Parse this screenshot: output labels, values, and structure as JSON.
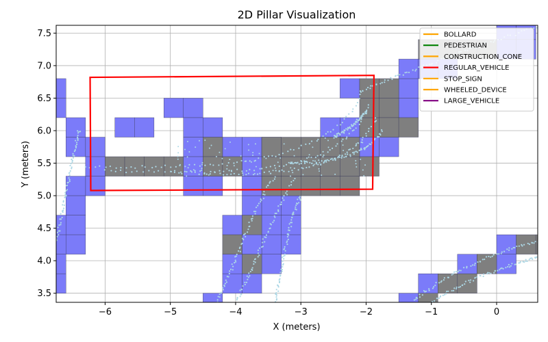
{
  "chart_data": {
    "type": "scatter",
    "title": "2D Pillar Visualization",
    "xlabel": "X (meters)",
    "ylabel": "Y (meters)",
    "xlim": [
      -6.75,
      0.63
    ],
    "ylim": [
      3.36,
      7.62
    ],
    "grid": true,
    "x_ticks": [
      -6,
      -5,
      -4,
      -3,
      -2,
      -1,
      0
    ],
    "x_tick_labels": [
      "−6",
      "−5",
      "−4",
      "−3",
      "−2",
      "−1",
      "0"
    ],
    "y_ticks": [
      3.5,
      4.0,
      4.5,
      5.0,
      5.5,
      6.0,
      6.5,
      7.0,
      7.5
    ],
    "y_tick_labels": [
      "3.5",
      "4.0",
      "4.5",
      "5.0",
      "5.5",
      "6.0",
      "6.5",
      "7.0",
      "7.5"
    ],
    "legend_position": "top-right",
    "legend": [
      {
        "label": "BOLLARD",
        "color": "#ffa500"
      },
      {
        "label": "PEDESTRIAN",
        "color": "#008000"
      },
      {
        "label": "CONSTRUCTION_CONE",
        "color": "#ffa500"
      },
      {
        "label": "REGULAR_VEHICLE",
        "color": "#ff0000"
      },
      {
        "label": "STOP_SIGN",
        "color": "#ffa500"
      },
      {
        "label": "WHEELED_DEVICE",
        "color": "#ffa500"
      },
      {
        "label": "LARGE_VEHICLE",
        "color": "#800080"
      }
    ],
    "colors": {
      "pillar_blue": "#7b7bf9",
      "pillar_gray": "#7f7f7f",
      "points": "#add8e6",
      "box": "#ff0000"
    },
    "pillar_size": 0.3,
    "pillars_blue": [
      [
        -6.9,
        6.5
      ],
      [
        -6.9,
        6.2
      ],
      [
        -6.6,
        5.9
      ],
      [
        -6.6,
        5.6
      ],
      [
        -6.3,
        5.6
      ],
      [
        -5.85,
        5.9
      ],
      [
        -5.55,
        5.9
      ],
      [
        -5.1,
        6.2
      ],
      [
        -4.8,
        6.2
      ],
      [
        -4.8,
        5.9
      ],
      [
        -4.5,
        5.9
      ],
      [
        -4.8,
        5.6
      ],
      [
        -4.8,
        5.3
      ],
      [
        -4.8,
        5.0
      ],
      [
        -4.5,
        5.0
      ],
      [
        -6.3,
        5.3
      ],
      [
        -6.3,
        5.0
      ],
      [
        -6.6,
        5.0
      ],
      [
        -6.6,
        4.7
      ],
      [
        -6.6,
        4.4
      ],
      [
        -6.6,
        4.1
      ],
      [
        -6.9,
        4.4
      ],
      [
        -6.9,
        4.1
      ],
      [
        -6.9,
        3.8
      ],
      [
        -6.9,
        3.5
      ],
      [
        -4.2,
        5.6
      ],
      [
        -3.9,
        5.6
      ],
      [
        -3.6,
        5.6
      ],
      [
        -3.9,
        5.3
      ],
      [
        -3.9,
        5.0
      ],
      [
        -3.9,
        4.7
      ],
      [
        -3.6,
        4.7
      ],
      [
        -3.6,
        4.4
      ],
      [
        -3.3,
        4.7
      ],
      [
        -3.3,
        4.4
      ],
      [
        -3.3,
        4.1
      ],
      [
        -3.6,
        4.1
      ],
      [
        -3.6,
        3.8
      ],
      [
        -3.9,
        4.1
      ],
      [
        -4.2,
        4.4
      ],
      [
        -4.2,
        3.8
      ],
      [
        -4.2,
        3.5
      ],
      [
        -3.9,
        3.5
      ],
      [
        -4.5,
        3.2
      ],
      [
        -2.7,
        5.9
      ],
      [
        -2.4,
        5.9
      ],
      [
        -2.4,
        6.5
      ],
      [
        -2.1,
        5.6
      ],
      [
        -1.8,
        5.6
      ],
      [
        -1.5,
        6.5
      ],
      [
        -1.5,
        6.2
      ],
      [
        -1.5,
        6.8
      ],
      [
        -1.2,
        6.8
      ],
      [
        -0.9,
        6.8
      ],
      [
        0.0,
        7.4
      ],
      [
        0.0,
        7.1
      ],
      [
        0.3,
        7.4
      ],
      [
        0.3,
        7.1
      ],
      [
        -1.2,
        3.5
      ],
      [
        -1.5,
        3.2
      ],
      [
        -0.6,
        3.8
      ],
      [
        -0.3,
        3.8
      ],
      [
        0.0,
        4.1
      ],
      [
        0.0,
        3.8
      ]
    ],
    "pillars_gray": [
      [
        -6.0,
        5.3
      ],
      [
        -5.7,
        5.3
      ],
      [
        -5.4,
        5.3
      ],
      [
        -5.1,
        5.3
      ],
      [
        -4.5,
        5.6
      ],
      [
        -4.5,
        5.3
      ],
      [
        -4.2,
        5.3
      ],
      [
        -3.6,
        5.3
      ],
      [
        -3.3,
        5.3
      ],
      [
        -3.0,
        5.3
      ],
      [
        -2.7,
        5.3
      ],
      [
        -2.4,
        5.3
      ],
      [
        -2.7,
        5.6
      ],
      [
        -2.4,
        5.6
      ],
      [
        -3.0,
        5.0
      ],
      [
        -2.7,
        5.0
      ],
      [
        -2.4,
        5.0
      ],
      [
        -2.1,
        5.3
      ],
      [
        -2.1,
        5.9
      ],
      [
        -2.1,
        6.2
      ],
      [
        -2.1,
        6.5
      ],
      [
        -1.8,
        6.2
      ],
      [
        -1.8,
        6.5
      ],
      [
        -1.8,
        5.9
      ],
      [
        -1.5,
        5.9
      ],
      [
        -3.3,
        5.0
      ],
      [
        -3.6,
        5.0
      ],
      [
        -3.6,
        5.6
      ],
      [
        -3.3,
        5.6
      ],
      [
        -3.0,
        5.6
      ],
      [
        -1.2,
        7.1
      ],
      [
        -0.9,
        7.1
      ],
      [
        -0.6,
        7.1
      ],
      [
        -0.3,
        7.1
      ],
      [
        -1.2,
        3.2
      ],
      [
        -0.9,
        3.5
      ],
      [
        -0.6,
        3.5
      ],
      [
        -0.3,
        3.8
      ],
      [
        0.3,
        4.1
      ],
      [
        0.6,
        4.1
      ],
      [
        -4.2,
        4.1
      ],
      [
        -3.9,
        3.8
      ],
      [
        -3.9,
        4.4
      ]
    ],
    "point_tracks": [
      {
        "from": [
          -6.3,
          5.44
        ],
        "c1": [
          -4.5,
          5.45
        ],
        "c2": [
          -2.6,
          5.35
        ],
        "to": [
          -2.05,
          6.6
        ]
      },
      {
        "from": [
          -6.0,
          5.38
        ],
        "c1": [
          -4.0,
          5.35
        ],
        "c2": [
          -2.4,
          5.25
        ],
        "to": [
          -1.95,
          6.4
        ]
      },
      {
        "from": [
          -5.0,
          5.36
        ],
        "c1": [
          -3.5,
          5.3
        ],
        "c2": [
          -2.2,
          5.3
        ],
        "to": [
          -1.85,
          6.2
        ]
      },
      {
        "from": [
          -3.2,
          5.5
        ],
        "c1": [
          -2.6,
          5.5
        ],
        "c2": [
          -2.0,
          5.6
        ],
        "to": [
          -1.75,
          6.0
        ]
      },
      {
        "from": [
          -6.75,
          4.3
        ],
        "c1": [
          -6.6,
          5.0
        ],
        "c2": [
          -6.5,
          5.6
        ],
        "to": [
          -6.4,
          6.0
        ]
      },
      {
        "from": [
          -4.3,
          3.36
        ],
        "c1": [
          -4.0,
          3.9
        ],
        "c2": [
          -3.8,
          4.7
        ],
        "to": [
          -3.4,
          5.3
        ]
      },
      {
        "from": [
          -4.0,
          3.36
        ],
        "c1": [
          -3.7,
          3.9
        ],
        "c2": [
          -3.5,
          4.6
        ],
        "to": [
          -3.1,
          5.25
        ]
      },
      {
        "from": [
          -3.4,
          3.36
        ],
        "c1": [
          -3.3,
          3.8
        ],
        "c2": [
          -3.2,
          4.6
        ],
        "to": [
          -3.0,
          5.0
        ]
      },
      {
        "from": [
          -1.3,
          3.36
        ],
        "c1": [
          -0.8,
          3.8
        ],
        "c2": [
          0.0,
          4.15
        ],
        "to": [
          0.63,
          4.3
        ]
      },
      {
        "from": [
          -1.0,
          3.36
        ],
        "c1": [
          -0.5,
          3.7
        ],
        "c2": [
          0.2,
          3.95
        ],
        "to": [
          0.63,
          4.05
        ]
      },
      {
        "from": [
          -2.1,
          6.6
        ],
        "c1": [
          -1.4,
          6.9
        ],
        "c2": [
          -0.6,
          7.2
        ],
        "to": [
          0.63,
          7.6
        ]
      },
      {
        "from": [
          -2.5,
          5.9
        ],
        "c1": [
          -2.3,
          6.0
        ],
        "c2": [
          -2.1,
          6.15
        ],
        "to": [
          -2.0,
          6.3
        ]
      }
    ],
    "bounding_box": {
      "label": "REGULAR_VEHICLE",
      "corners": [
        [
          -6.23,
          6.82
        ],
        [
          -1.88,
          6.85
        ],
        [
          -1.9,
          5.1
        ],
        [
          -6.22,
          5.08
        ]
      ]
    }
  }
}
